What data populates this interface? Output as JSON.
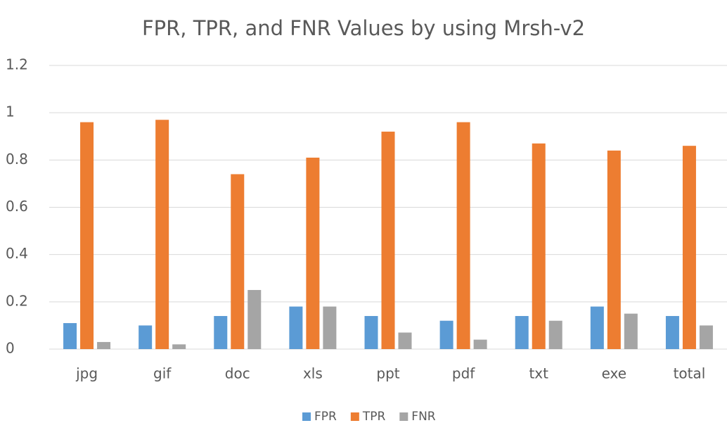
{
  "chart_data": {
    "type": "bar",
    "title": "FPR, TPR, and FNR Values by using Mrsh-v2",
    "categories": [
      "jpg",
      "gif",
      "doc",
      "xls",
      "ppt",
      "pdf",
      "txt",
      "exe",
      "total"
    ],
    "series": [
      {
        "name": "FPR",
        "color": "#5b9bd5",
        "values": [
          0.11,
          0.1,
          0.14,
          0.18,
          0.14,
          0.12,
          0.14,
          0.18,
          0.14
        ]
      },
      {
        "name": "TPR",
        "color": "#ed7d31",
        "values": [
          0.96,
          0.97,
          0.74,
          0.81,
          0.92,
          0.96,
          0.87,
          0.84,
          0.86
        ]
      },
      {
        "name": "FNR",
        "color": "#a5a5a5",
        "values": [
          0.03,
          0.02,
          0.25,
          0.18,
          0.07,
          0.04,
          0.12,
          0.15,
          0.1
        ]
      }
    ],
    "ylim": [
      0,
      1.2
    ],
    "yticks": [
      0,
      0.2,
      0.4,
      0.6,
      0.8,
      1,
      1.2
    ],
    "grid": true,
    "legend": "bottom"
  }
}
